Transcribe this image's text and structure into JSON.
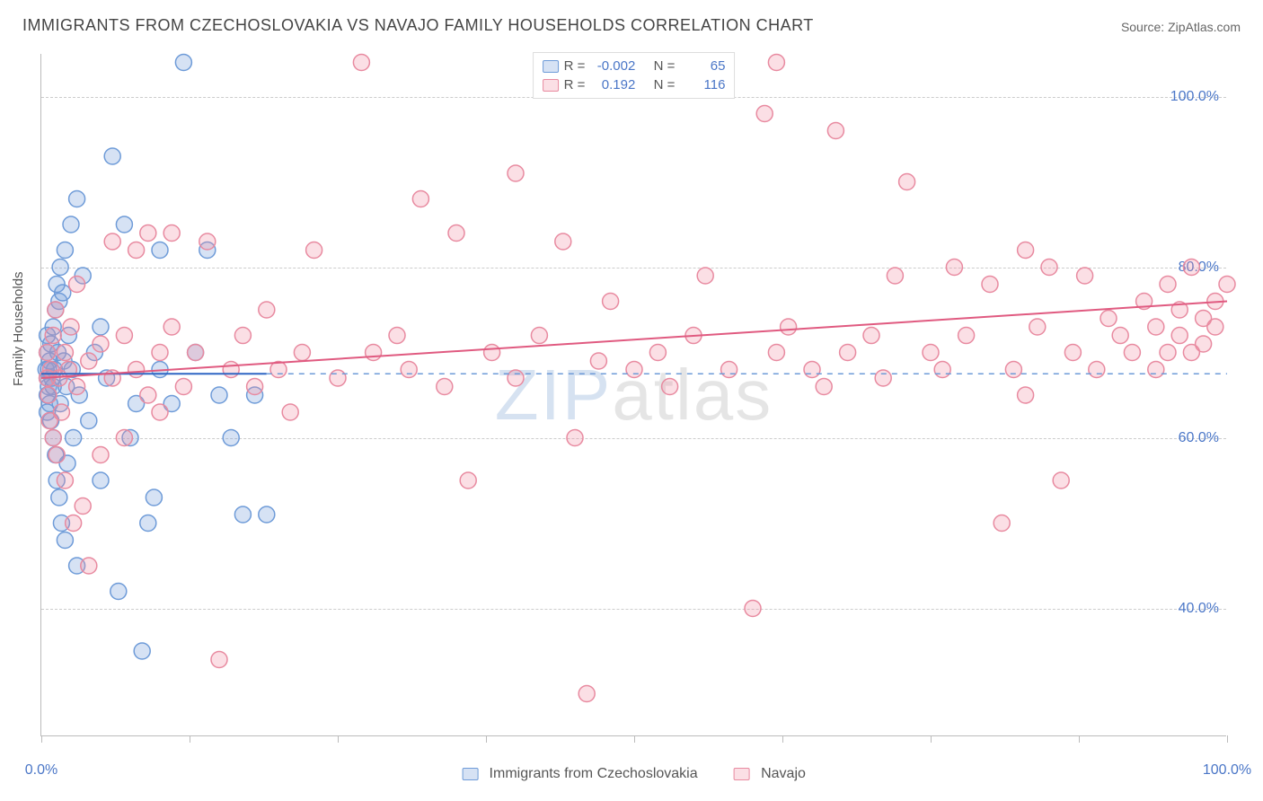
{
  "title": "IMMIGRANTS FROM CZECHOSLOVAKIA VS NAVAJO FAMILY HOUSEHOLDS CORRELATION CHART",
  "source": "Source: ZipAtlas.com",
  "ylabel": "Family Households",
  "watermark_left": "ZIP",
  "watermark_right": "atlas",
  "chart": {
    "type": "scatter",
    "xlim": [
      0,
      100
    ],
    "ylim": [
      25,
      105
    ],
    "yticks": [
      40,
      60,
      80,
      100
    ],
    "ytick_labels": [
      "40.0%",
      "60.0%",
      "80.0%",
      "100.0%"
    ],
    "xticks": [
      0,
      50,
      100
    ],
    "xtick_labels": [
      "0.0%",
      "",
      "100.0%"
    ],
    "xminor": [
      12.5,
      25,
      37.5,
      62.5,
      75,
      87.5
    ],
    "background_color": "#ffffff",
    "grid_color": "#cccccc",
    "axis_color": "#bbbbbb",
    "tick_label_color": "#4a76c7",
    "marker_radius": 9,
    "marker_stroke_width": 1.5,
    "series": [
      {
        "name": "Immigrants from Czechoslovakia",
        "fill": "rgba(120,160,220,0.30)",
        "stroke": "#6e9bd8",
        "line_color": "#2f66c4",
        "line_width": 2,
        "dash_color": "#6e9bd8",
        "R": "-0.002",
        "N": "65",
        "trend": {
          "x1": 0,
          "y1": 67.5,
          "x2": 19,
          "y2": 67.5,
          "dash_to_x": 100
        },
        "points": [
          [
            0.5,
            67
          ],
          [
            0.5,
            70
          ],
          [
            0.5,
            65
          ],
          [
            0.5,
            72
          ],
          [
            0.5,
            63
          ],
          [
            0.6,
            68
          ],
          [
            0.6,
            66
          ],
          [
            0.7,
            69
          ],
          [
            0.7,
            64
          ],
          [
            0.8,
            71
          ],
          [
            0.8,
            62
          ],
          [
            0.9,
            67
          ],
          [
            1,
            73
          ],
          [
            1,
            60
          ],
          [
            1.2,
            75
          ],
          [
            1.2,
            58
          ],
          [
            1.3,
            78
          ],
          [
            1.3,
            55
          ],
          [
            1.5,
            76
          ],
          [
            1.5,
            53
          ],
          [
            1.6,
            80
          ],
          [
            1.7,
            50
          ],
          [
            1.8,
            77
          ],
          [
            2,
            82
          ],
          [
            2,
            48
          ],
          [
            2.2,
            57
          ],
          [
            2.3,
            72
          ],
          [
            2.5,
            85
          ],
          [
            2.7,
            60
          ],
          [
            3,
            88
          ],
          [
            3,
            45
          ],
          [
            3.2,
            65
          ],
          [
            3.5,
            79
          ],
          [
            4,
            62
          ],
          [
            4.5,
            70
          ],
          [
            5,
            55
          ],
          [
            5,
            73
          ],
          [
            5.5,
            67
          ],
          [
            6,
            93
          ],
          [
            6.5,
            42
          ],
          [
            7,
            85
          ],
          [
            7.5,
            60
          ],
          [
            8,
            64
          ],
          [
            8.5,
            35
          ],
          [
            9,
            50
          ],
          [
            9.5,
            53
          ],
          [
            10,
            68
          ],
          [
            10,
            82
          ],
          [
            11,
            64
          ],
          [
            12,
            104
          ],
          [
            13,
            70
          ],
          [
            14,
            82
          ],
          [
            15,
            65
          ],
          [
            16,
            60
          ],
          [
            17,
            51
          ],
          [
            18,
            65
          ],
          [
            19,
            51
          ],
          [
            1,
            66
          ],
          [
            1.1,
            68
          ],
          [
            1.4,
            70
          ],
          [
            1.6,
            64
          ],
          [
            1.9,
            69
          ],
          [
            2.1,
            66
          ],
          [
            2.6,
            68
          ],
          [
            0.4,
            68
          ]
        ]
      },
      {
        "name": "Navajo",
        "fill": "rgba(240,140,160,0.28)",
        "stroke": "#e88aa0",
        "line_color": "#e05a80",
        "line_width": 2,
        "R": "0.192",
        "N": "116",
        "trend": {
          "x1": 0,
          "y1": 67,
          "x2": 100,
          "y2": 76
        },
        "points": [
          [
            0.5,
            67
          ],
          [
            0.5,
            70
          ],
          [
            0.6,
            65
          ],
          [
            0.7,
            62
          ],
          [
            0.8,
            68
          ],
          [
            1,
            72
          ],
          [
            1,
            60
          ],
          [
            1.2,
            75
          ],
          [
            1.3,
            58
          ],
          [
            1.5,
            67
          ],
          [
            1.7,
            63
          ],
          [
            2,
            70
          ],
          [
            2,
            55
          ],
          [
            2.3,
            68
          ],
          [
            2.5,
            73
          ],
          [
            2.7,
            50
          ],
          [
            3,
            66
          ],
          [
            3,
            78
          ],
          [
            3.5,
            52
          ],
          [
            4,
            69
          ],
          [
            4,
            45
          ],
          [
            5,
            71
          ],
          [
            5,
            58
          ],
          [
            6,
            67
          ],
          [
            6,
            83
          ],
          [
            7,
            60
          ],
          [
            7,
            72
          ],
          [
            8,
            68
          ],
          [
            8,
            82
          ],
          [
            9,
            65
          ],
          [
            9,
            84
          ],
          [
            10,
            70
          ],
          [
            10,
            63
          ],
          [
            11,
            73
          ],
          [
            11,
            84
          ],
          [
            12,
            66
          ],
          [
            13,
            70
          ],
          [
            14,
            83
          ],
          [
            15,
            34
          ],
          [
            16,
            68
          ],
          [
            17,
            72
          ],
          [
            18,
            66
          ],
          [
            19,
            75
          ],
          [
            20,
            68
          ],
          [
            21,
            63
          ],
          [
            22,
            70
          ],
          [
            23,
            82
          ],
          [
            25,
            67
          ],
          [
            27,
            104
          ],
          [
            28,
            70
          ],
          [
            30,
            72
          ],
          [
            31,
            68
          ],
          [
            32,
            88
          ],
          [
            34,
            66
          ],
          [
            35,
            84
          ],
          [
            36,
            55
          ],
          [
            38,
            70
          ],
          [
            40,
            67
          ],
          [
            40,
            91
          ],
          [
            42,
            72
          ],
          [
            44,
            83
          ],
          [
            45,
            60
          ],
          [
            46,
            30
          ],
          [
            47,
            69
          ],
          [
            48,
            76
          ],
          [
            50,
            68
          ],
          [
            52,
            70
          ],
          [
            53,
            66
          ],
          [
            55,
            72
          ],
          [
            56,
            79
          ],
          [
            58,
            68
          ],
          [
            60,
            40
          ],
          [
            61,
            98
          ],
          [
            62,
            70
          ],
          [
            62,
            104
          ],
          [
            63,
            73
          ],
          [
            65,
            68
          ],
          [
            66,
            66
          ],
          [
            67,
            96
          ],
          [
            68,
            70
          ],
          [
            70,
            72
          ],
          [
            71,
            67
          ],
          [
            72,
            79
          ],
          [
            73,
            90
          ],
          [
            75,
            70
          ],
          [
            76,
            68
          ],
          [
            77,
            80
          ],
          [
            78,
            72
          ],
          [
            80,
            78
          ],
          [
            81,
            50
          ],
          [
            82,
            68
          ],
          [
            83,
            65
          ],
          [
            84,
            73
          ],
          [
            85,
            80
          ],
          [
            86,
            55
          ],
          [
            87,
            70
          ],
          [
            88,
            79
          ],
          [
            89,
            68
          ],
          [
            90,
            74
          ],
          [
            91,
            72
          ],
          [
            92,
            70
          ],
          [
            93,
            76
          ],
          [
            94,
            68
          ],
          [
            94,
            73
          ],
          [
            95,
            70
          ],
          [
            95,
            78
          ],
          [
            96,
            72
          ],
          [
            96,
            75
          ],
          [
            97,
            70
          ],
          [
            97,
            80
          ],
          [
            98,
            74
          ],
          [
            98,
            71
          ],
          [
            99,
            73
          ],
          [
            99,
            76
          ],
          [
            100,
            78
          ],
          [
            83,
            82
          ]
        ]
      }
    ]
  },
  "legend_top": {
    "rows": [
      {
        "swatch": "blue",
        "R_label": "R =",
        "N_label": "N ="
      },
      {
        "swatch": "pink",
        "R_label": "R =",
        "N_label": "N ="
      }
    ]
  },
  "legend_bottom": {
    "items": [
      {
        "swatch": "blue"
      },
      {
        "swatch": "pink"
      }
    ]
  }
}
